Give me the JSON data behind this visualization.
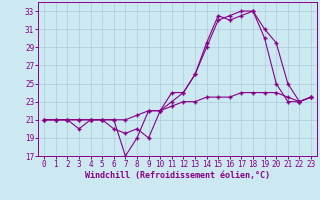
{
  "xlabel": "Windchill (Refroidissement éolien,°C)",
  "background_color": "#cce8f0",
  "grid_color": "#aaccd8",
  "line_color": "#880088",
  "xlim": [
    -0.5,
    23.5
  ],
  "ylim": [
    17,
    34
  ],
  "yticks": [
    17,
    19,
    21,
    23,
    25,
    27,
    29,
    31,
    33
  ],
  "xticks": [
    0,
    1,
    2,
    3,
    4,
    5,
    6,
    7,
    8,
    9,
    10,
    11,
    12,
    13,
    14,
    15,
    16,
    17,
    18,
    19,
    20,
    21,
    22,
    23
  ],
  "line1_x": [
    0,
    1,
    2,
    3,
    4,
    5,
    6,
    7,
    8,
    9,
    10,
    11,
    12,
    13,
    14,
    15,
    16,
    17,
    18,
    19,
    20,
    21,
    22,
    23
  ],
  "line1_y": [
    21,
    21,
    21,
    20,
    21,
    21,
    20,
    19.5,
    20,
    19,
    22,
    24,
    24,
    26,
    29,
    32,
    32.5,
    33,
    33,
    30,
    25,
    23,
    23,
    23.5
  ],
  "line2_x": [
    0,
    1,
    2,
    3,
    4,
    5,
    6,
    7,
    8,
    9,
    10,
    11,
    12,
    13,
    14,
    15,
    16,
    17,
    18,
    19,
    20,
    21,
    22,
    23
  ],
  "line2_y": [
    21,
    21,
    21,
    21,
    21,
    21,
    21,
    17,
    19,
    22,
    22,
    23,
    24,
    26,
    29.5,
    32.5,
    32,
    32.5,
    33,
    31,
    29.5,
    25,
    23,
    23.5
  ],
  "line3_x": [
    0,
    1,
    2,
    3,
    4,
    5,
    6,
    7,
    8,
    9,
    10,
    11,
    12,
    13,
    14,
    15,
    16,
    17,
    18,
    19,
    20,
    21,
    22,
    23
  ],
  "line3_y": [
    21,
    21,
    21,
    21,
    21,
    21,
    21,
    21,
    21.5,
    22,
    22,
    22.5,
    23,
    23,
    23.5,
    23.5,
    23.5,
    24,
    24,
    24,
    24,
    23.5,
    23,
    23.5
  ],
  "tick_fontsize": 5.5,
  "xlabel_fontsize": 6.0
}
